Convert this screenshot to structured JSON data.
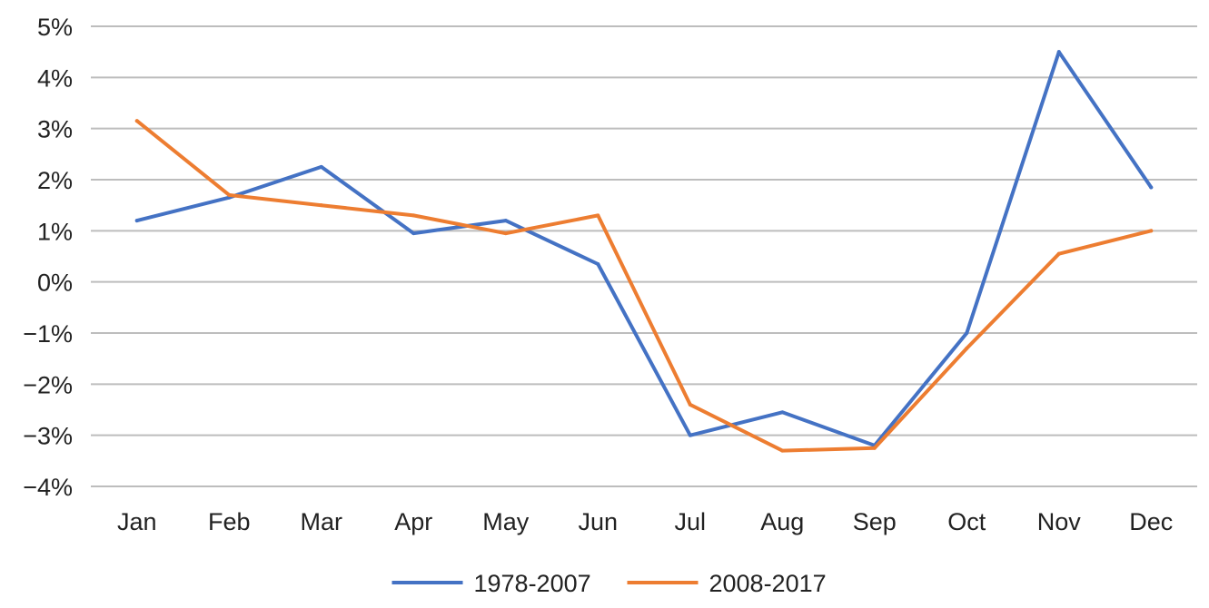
{
  "chart_data": {
    "type": "line",
    "categories": [
      "Jan",
      "Feb",
      "Mar",
      "Apr",
      "May",
      "Jun",
      "Jul",
      "Aug",
      "Sep",
      "Oct",
      "Nov",
      "Dec"
    ],
    "series": [
      {
        "name": "1978-2007",
        "color": "#4472c4",
        "values": [
          1.2,
          1.65,
          2.25,
          0.95,
          1.2,
          0.35,
          -3.0,
          -2.55,
          -3.2,
          -1.0,
          4.5,
          1.85
        ]
      },
      {
        "name": "2008-2017",
        "color": "#ed7d31",
        "values": [
          3.15,
          1.7,
          1.5,
          1.3,
          0.95,
          1.3,
          -2.4,
          -3.3,
          -3.25,
          -1.3,
          0.55,
          1.0
        ]
      }
    ],
    "y_ticks": [
      "5%",
      "4%",
      "3%",
      "2%",
      "1%",
      "0%",
      "−1%",
      "−2%",
      "−3%",
      "−4%"
    ],
    "ylim": [
      -4,
      5
    ],
    "grid": true,
    "legend_position": "bottom"
  }
}
